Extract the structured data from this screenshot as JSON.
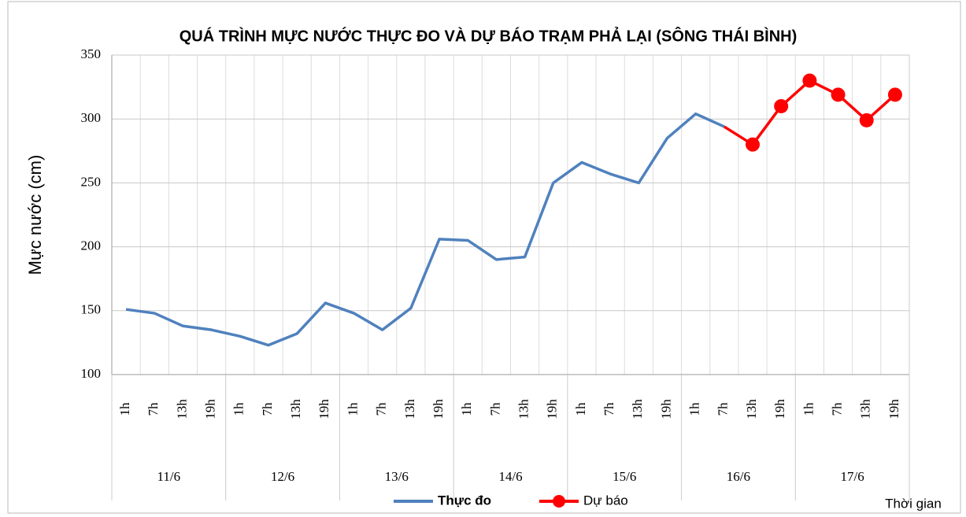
{
  "chart_data": {
    "type": "line",
    "title": "QUÁ TRÌNH MỰC NƯỚC THỰC ĐO VÀ DỰ BÁO TRẠM PHẢ LẠI (SÔNG THÁI BÌNH)",
    "y_label": "Mực nước (cm)",
    "x_label": "Thời gian",
    "categories": [
      "1h",
      "7h",
      "13h",
      "19h",
      "1h",
      "7h",
      "13h",
      "19h",
      "1h",
      "7h",
      "13h",
      "19h",
      "1h",
      "7h",
      "13h",
      "19h",
      "1h",
      "7h",
      "13h",
      "19h",
      "1h",
      "7h",
      "13h",
      "19h",
      "1h",
      "7h",
      "13h",
      "19h"
    ],
    "days": [
      "11/6",
      "12/6",
      "13/6",
      "14/6",
      "15/6",
      "16/6",
      "17/6"
    ],
    "series": [
      {
        "name": "Thực đo",
        "color": "#4f81bd",
        "values": [
          151,
          148,
          138,
          135,
          130,
          123,
          132,
          156,
          148,
          135,
          152,
          206,
          205,
          190,
          192,
          250,
          266,
          257,
          250,
          285,
          304,
          294,
          null,
          null,
          null,
          null,
          null,
          null
        ]
      },
      {
        "name": "Dự báo",
        "color": "#ff0000",
        "values": [
          null,
          null,
          null,
          null,
          null,
          null,
          null,
          null,
          null,
          null,
          null,
          null,
          null,
          null,
          null,
          null,
          null,
          null,
          null,
          null,
          null,
          294,
          280,
          310,
          330,
          319,
          299,
          319
        ]
      }
    ],
    "ylim": [
      100,
      350
    ],
    "yticks": [
      100,
      150,
      200,
      250,
      300,
      350
    ],
    "grid": true
  }
}
